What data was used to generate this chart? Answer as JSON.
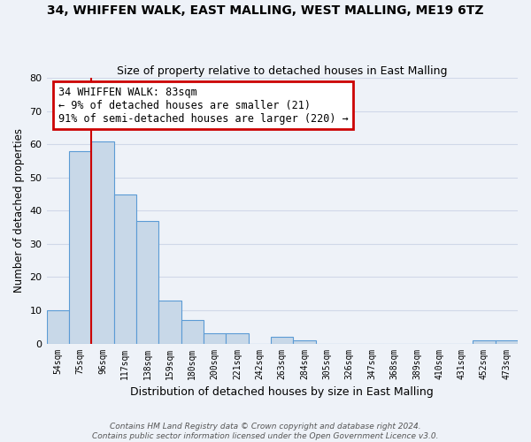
{
  "title": "34, WHIFFEN WALK, EAST MALLING, WEST MALLING, ME19 6TZ",
  "subtitle": "Size of property relative to detached houses in East Malling",
  "xlabel": "Distribution of detached houses by size in East Malling",
  "ylabel": "Number of detached properties",
  "bar_labels": [
    "54sqm",
    "75sqm",
    "96sqm",
    "117sqm",
    "138sqm",
    "159sqm",
    "180sqm",
    "200sqm",
    "221sqm",
    "242sqm",
    "263sqm",
    "284sqm",
    "305sqm",
    "326sqm",
    "347sqm",
    "368sqm",
    "389sqm",
    "410sqm",
    "431sqm",
    "452sqm",
    "473sqm"
  ],
  "bar_values": [
    10,
    58,
    61,
    45,
    37,
    13,
    7,
    3,
    3,
    0,
    2,
    1,
    0,
    0,
    0,
    0,
    0,
    0,
    0,
    1,
    1
  ],
  "bar_color": "#c8d8e8",
  "bar_edge_color": "#5b9bd5",
  "grid_color": "#d0d8e8",
  "background_color": "#eef2f8",
  "property_line_color": "#cc0000",
  "annotation_line1": "34 WHIFFEN WALK: 83sqm",
  "annotation_line2": "← 9% of detached houses are smaller (21)",
  "annotation_line3": "91% of semi-detached houses are larger (220) →",
  "annotation_box_color": "#ffffff",
  "annotation_box_edge": "#cc0000",
  "ylim": [
    0,
    80
  ],
  "yticks": [
    0,
    10,
    20,
    30,
    40,
    50,
    60,
    70,
    80
  ],
  "footer_line1": "Contains HM Land Registry data © Crown copyright and database right 2024.",
  "footer_line2": "Contains public sector information licensed under the Open Government Licence v3.0."
}
